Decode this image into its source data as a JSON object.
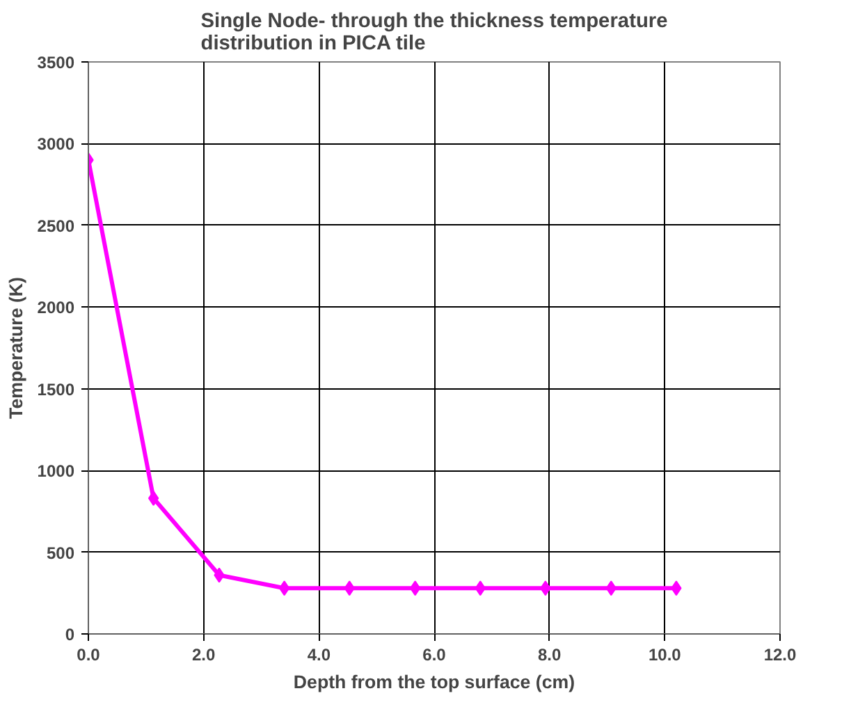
{
  "chart_data": {
    "type": "line",
    "title": "Single Node- through the thickness temperature\ndistribution in PICA tile",
    "xlabel": "Depth from the top surface (cm)",
    "ylabel": "Temperature (K)",
    "x": [
      0.0,
      1.13,
      2.27,
      3.4,
      4.53,
      5.67,
      6.8,
      7.93,
      9.07,
      10.2
    ],
    "series": [
      {
        "color": "#ff00ff",
        "values": [
          2900,
          830,
          360,
          280,
          280,
          280,
          280,
          280,
          280,
          280
        ]
      }
    ],
    "xlim": [
      0,
      12
    ],
    "xticks": [
      {
        "value": 0,
        "label": "0.0"
      },
      {
        "value": 2,
        "label": "2.0"
      },
      {
        "value": 4,
        "label": "4.0"
      },
      {
        "value": 6,
        "label": "6.0"
      },
      {
        "value": 8,
        "label": "8.0"
      },
      {
        "value": 10,
        "label": "10.0"
      },
      {
        "value": 12,
        "label": "12.0"
      }
    ],
    "ylim": [
      0,
      3500
    ],
    "yticks": [
      0,
      500,
      1000,
      1500,
      2000,
      2500,
      3000,
      3500
    ],
    "grid": true,
    "marker": "diamond",
    "line_style": "solid"
  }
}
